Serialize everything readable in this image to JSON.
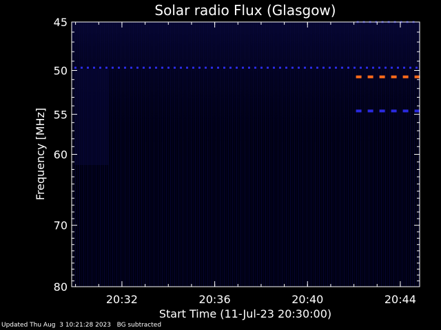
{
  "chart_data": {
    "type": "heatmap",
    "title": "Solar radio Flux (Glasgow)",
    "xlabel": "Start Time (11-Jul-23 20:30:00)",
    "ylabel": "Frequency [MHz]",
    "x_start": "20:29:50",
    "x_end": "20:44:50",
    "xticks": [
      {
        "time": "20:32",
        "label": "20:32"
      },
      {
        "time": "20:36",
        "label": "20:36"
      },
      {
        "time": "20:40",
        "label": "20:40"
      },
      {
        "time": "20:44",
        "label": "20:44"
      }
    ],
    "ylim": [
      45,
      80
    ],
    "y_scale": "log",
    "yticks": [
      45,
      50,
      55,
      60,
      70,
      80
    ],
    "background": "BG subtracted",
    "features": [
      {
        "kind": "dotted-band",
        "freq_mhz": 49.7,
        "start": "20:29:50",
        "end": "20:44:50",
        "color": "#2a2ae0"
      },
      {
        "kind": "dotted-band",
        "freq_mhz": 45.0,
        "start": "20:42:00",
        "end": "20:44:50",
        "color": "#1a1aa0"
      },
      {
        "kind": "dashed-band",
        "freq_mhz": 50.7,
        "start": "20:42:00",
        "end": "20:44:50",
        "color": "#ff6a1a"
      },
      {
        "kind": "dashed-band",
        "freq_mhz": 54.6,
        "start": "20:42:00",
        "end": "20:44:50",
        "color": "#2a2ae0"
      }
    ]
  },
  "footer": {
    "updated": "Updated Thu Aug  3 10:21:28 2023",
    "bg_note": "BG subtracted"
  }
}
